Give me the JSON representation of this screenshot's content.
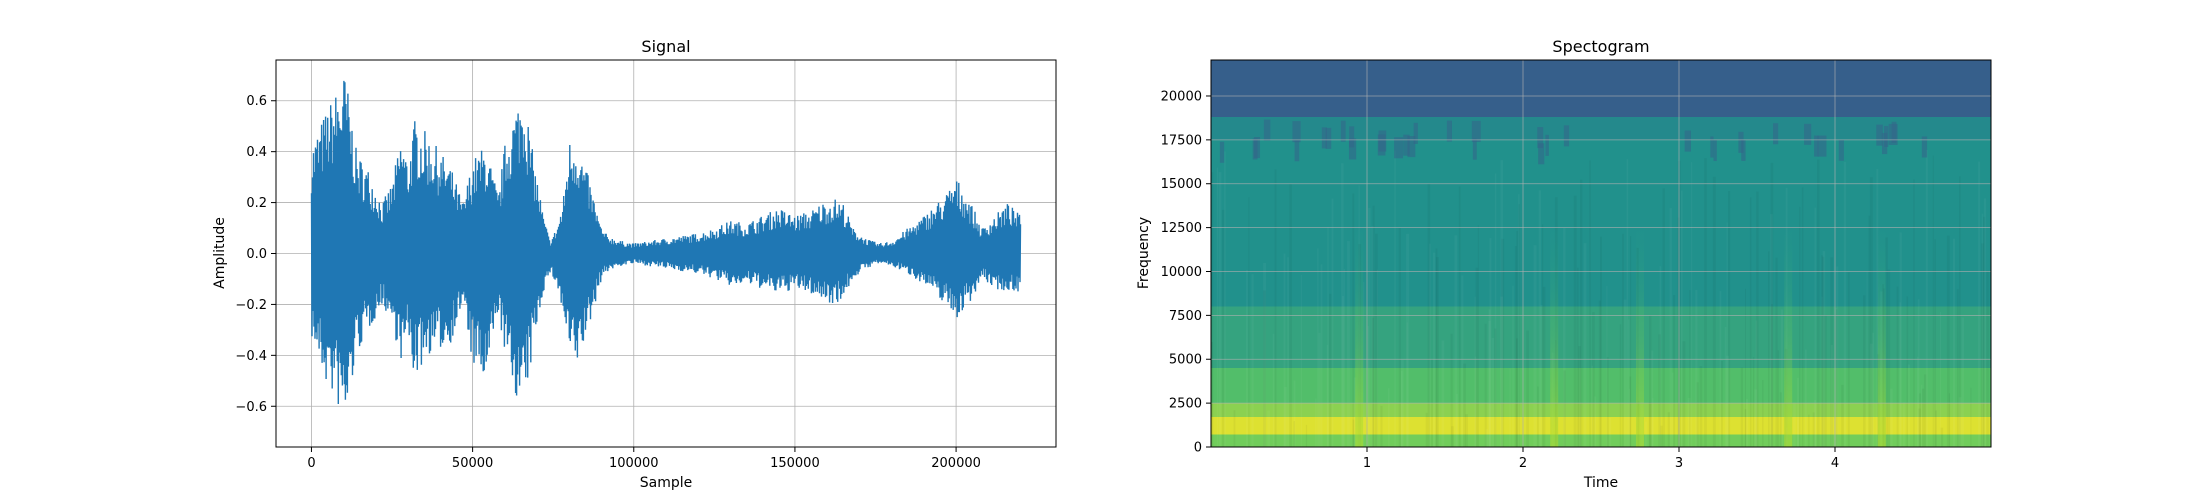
{
  "colors": {
    "signal_line": "#1f77b4",
    "grid": "#b0b0b0",
    "axes": "#000000",
    "spectrogram_low": "#2b6d8e",
    "spectrogram_mid": "#25a085",
    "spectrogram_high": "#f5e61f"
  },
  "chart_data": [
    {
      "type": "line",
      "title": "Signal",
      "xlabel": "Sample",
      "ylabel": "Amplitude",
      "xlim": [
        -11000,
        231000
      ],
      "ylim": [
        -0.76,
        0.76
      ],
      "grid": true,
      "xticks": [
        0,
        50000,
        100000,
        150000,
        200000
      ],
      "xtick_labels": [
        "0",
        "50000",
        "100000",
        "150000",
        "200000"
      ],
      "yticks": [
        -0.6,
        -0.4,
        -0.2,
        0.0,
        0.2,
        0.4,
        0.6
      ],
      "ytick_labels": [
        "−0.6",
        "−0.4",
        "−0.2",
        "0.0",
        "0.2",
        "0.4",
        "0.6"
      ],
      "series": [
        {
          "color": "#1f77b4",
          "envelope": {
            "x": [
              0,
              4000,
              8000,
              10500,
              14000,
              18000,
              22000,
              25000,
              28000,
              30000,
              32000,
              36000,
              40000,
              43000,
              47000,
              50000,
              54000,
              58000,
              60000,
              62000,
              64000,
              66000,
              68000,
              70000,
              72000,
              74000,
              76000,
              78000,
              80000,
              82000,
              84000,
              86000,
              88000,
              90000,
              92000,
              96000,
              100000,
              105000,
              110000,
              115000,
              120000,
              125000,
              130000,
              135000,
              140000,
              145000,
              150000,
              155000,
              158000,
              162000,
              165000,
              168000,
              172000,
              176000,
              180000,
              185000,
              190000,
              194000,
              197000,
              200000,
              204000,
              208000,
              212000,
              216000,
              220000
            ],
            "upper": [
              0.43,
              0.55,
              0.65,
              0.72,
              0.4,
              0.33,
              0.2,
              0.28,
              0.47,
              0.36,
              0.53,
              0.47,
              0.4,
              0.35,
              0.2,
              0.37,
              0.43,
              0.23,
              0.43,
              0.53,
              0.6,
              0.66,
              0.45,
              0.3,
              0.15,
              0.05,
              0.1,
              0.2,
              0.45,
              0.47,
              0.38,
              0.3,
              0.2,
              0.1,
              0.07,
              0.05,
              0.04,
              0.05,
              0.06,
              0.07,
              0.08,
              0.1,
              0.13,
              0.12,
              0.15,
              0.18,
              0.15,
              0.17,
              0.2,
              0.22,
              0.2,
              0.1,
              0.06,
              0.04,
              0.05,
              0.1,
              0.15,
              0.2,
              0.24,
              0.3,
              0.22,
              0.1,
              0.15,
              0.2,
              0.15
            ],
            "lower": [
              -0.33,
              -0.5,
              -0.6,
              -0.69,
              -0.4,
              -0.3,
              -0.2,
              -0.28,
              -0.43,
              -0.34,
              -0.5,
              -0.4,
              -0.38,
              -0.36,
              -0.2,
              -0.44,
              -0.53,
              -0.23,
              -0.4,
              -0.51,
              -0.58,
              -0.62,
              -0.45,
              -0.28,
              -0.15,
              -0.08,
              -0.12,
              -0.25,
              -0.4,
              -0.46,
              -0.38,
              -0.3,
              -0.2,
              -0.1,
              -0.07,
              -0.05,
              -0.04,
              -0.05,
              -0.06,
              -0.07,
              -0.08,
              -0.1,
              -0.13,
              -0.12,
              -0.14,
              -0.16,
              -0.14,
              -0.16,
              -0.18,
              -0.2,
              -0.18,
              -0.1,
              -0.06,
              -0.04,
              -0.05,
              -0.08,
              -0.12,
              -0.17,
              -0.2,
              -0.26,
              -0.2,
              -0.1,
              -0.14,
              -0.15,
              -0.15
            ]
          }
        }
      ]
    },
    {
      "type": "heatmap",
      "title": "Spectogram",
      "xlabel": "Time",
      "ylabel": "Frequency",
      "xlim": [
        0,
        5
      ],
      "ylim": [
        0,
        22050
      ],
      "grid": true,
      "xticks": [
        1,
        2,
        3,
        4
      ],
      "xtick_labels": [
        "1",
        "2",
        "3",
        "4"
      ],
      "yticks": [
        0,
        2500,
        5000,
        7500,
        10000,
        12500,
        15000,
        17500,
        20000
      ],
      "ytick_labels": [
        "0",
        "2500",
        "5000",
        "7500",
        "10000",
        "12500",
        "15000",
        "17500",
        "20000"
      ],
      "colormap": "viridis",
      "frequency_bands": [
        {
          "from": 0,
          "to": 700,
          "level": 0.78
        },
        {
          "from": 700,
          "to": 1700,
          "level": 0.95
        },
        {
          "from": 1700,
          "to": 2500,
          "level": 0.82
        },
        {
          "from": 2500,
          "to": 4500,
          "level": 0.7
        },
        {
          "from": 4500,
          "to": 8000,
          "level": 0.58
        },
        {
          "from": 8000,
          "to": 17500,
          "level": 0.5
        },
        {
          "from": 17500,
          "to": 18800,
          "level": 0.47
        },
        {
          "from": 18800,
          "to": 22050,
          "level": 0.3
        }
      ],
      "time_streaks": [
        {
          "time": 0.95,
          "level": 0.6
        },
        {
          "time": 2.2,
          "level": 0.58
        },
        {
          "time": 2.75,
          "level": 0.6
        },
        {
          "time": 3.7,
          "level": 0.66
        },
        {
          "time": 4.3,
          "level": 0.56
        }
      ]
    }
  ]
}
